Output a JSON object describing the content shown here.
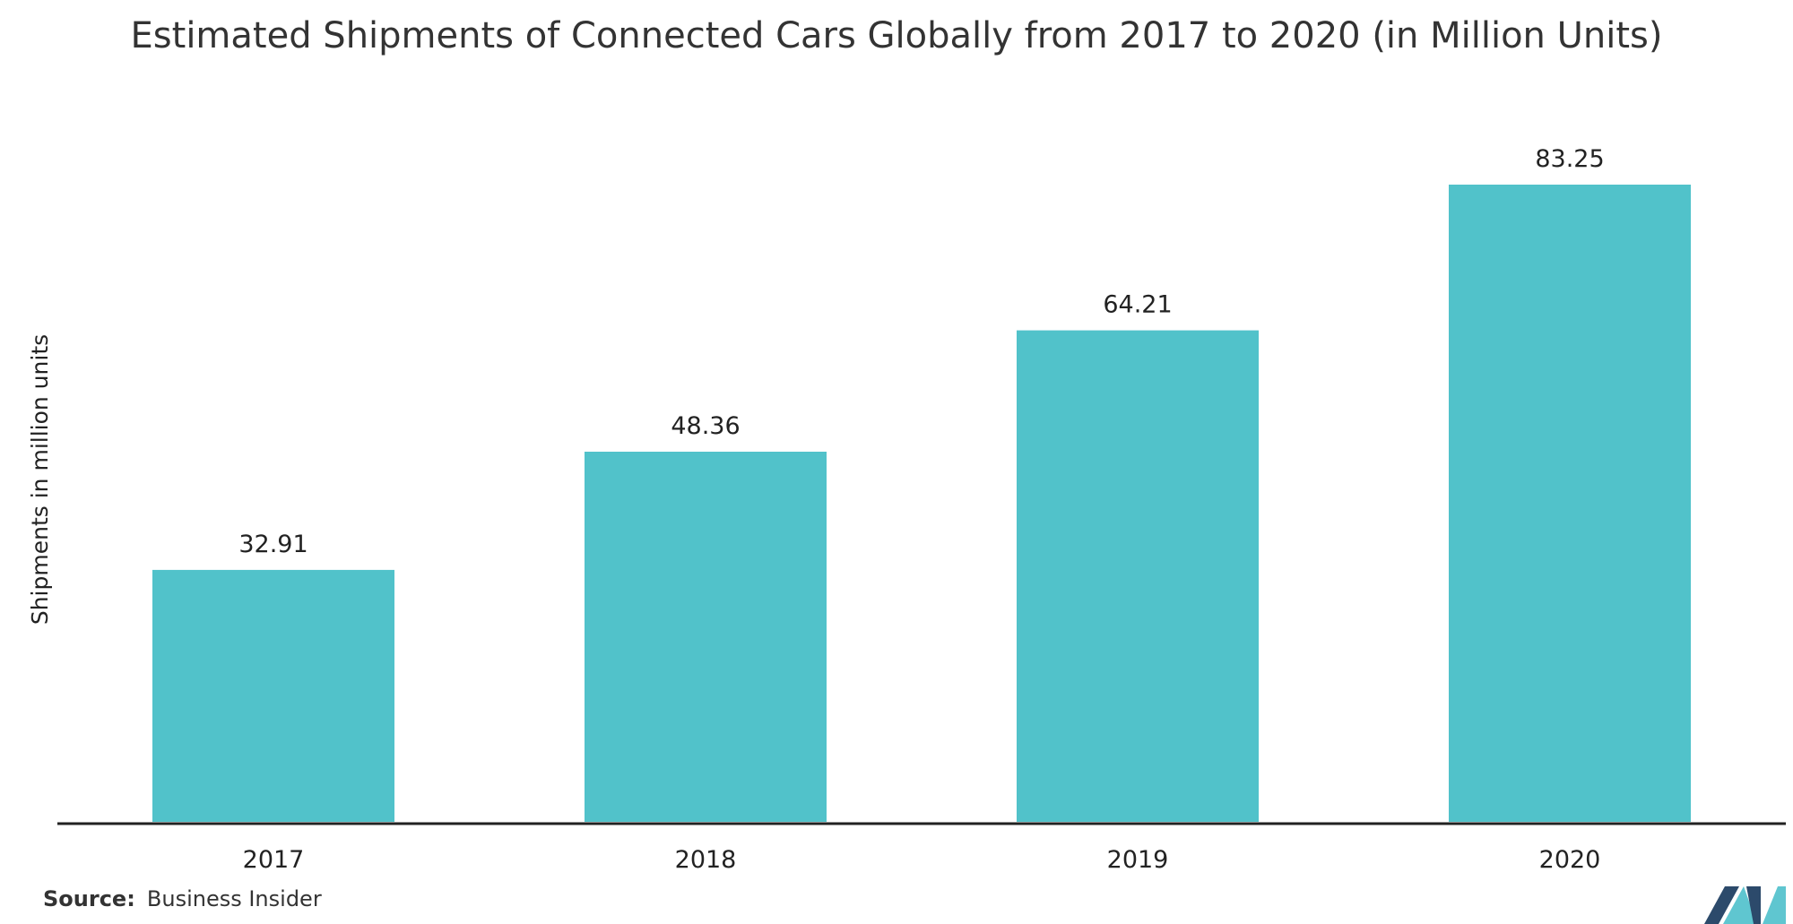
{
  "chart_data": {
    "type": "bar",
    "title": "Estimated Shipments of Connected Cars Globally from 2017 to 2020 (in Million Units)",
    "xlabel": "",
    "ylabel": "Shipments in million units",
    "categories": [
      "2017",
      "2018",
      "2019",
      "2020"
    ],
    "values": [
      32.91,
      48.36,
      64.21,
      83.25
    ],
    "value_labels": [
      "32.91",
      "48.36",
      "64.21",
      "83.25"
    ],
    "ylim": [
      0,
      100
    ],
    "grid": false,
    "legend": "none",
    "bar_color": "#51C2CA",
    "axis_color": "#222222"
  },
  "source": {
    "label": "Source:",
    "text": "Business Insider"
  },
  "logo": {
    "icon": "mordor-intelligence-logo-icon",
    "colors": [
      "#2C4A6B",
      "#5FC6D0"
    ]
  }
}
